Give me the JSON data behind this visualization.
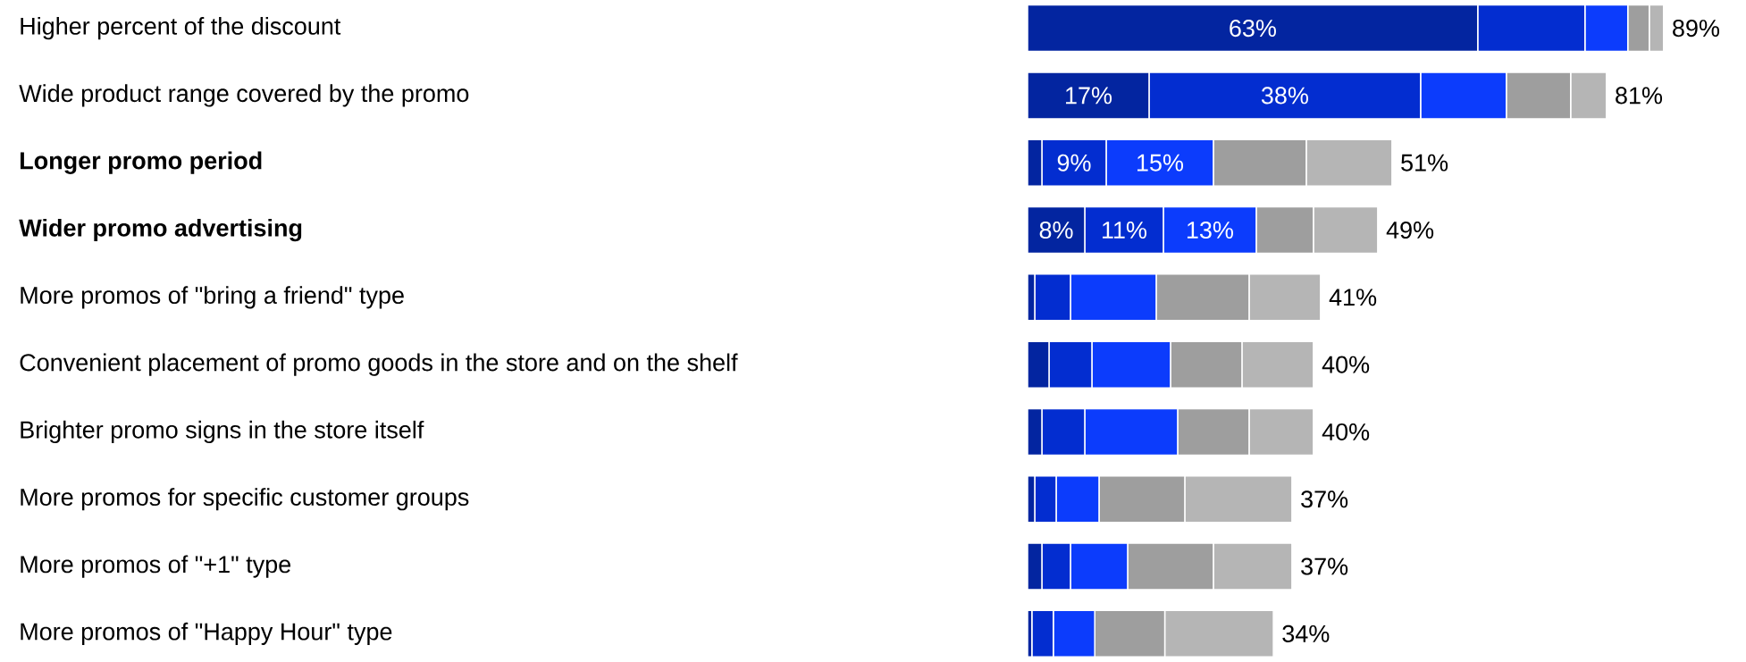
{
  "chart_data": {
    "type": "bar",
    "orientation": "horizontal",
    "stacked": true,
    "categories": [
      "Higher percent of the discount",
      "Wide product range covered by the promo",
      "**Longer promo period**",
      "**Wider promo advertising**",
      "More promos of \"bring a friend\" type",
      "Convenient placement of promo goods in the store and on the shelf",
      "Brighter promo signs in the store itself",
      "More promos for specific customer groups",
      "More promos of \"+1\" type",
      "More promos of \"Happy Hour\" type"
    ],
    "series": [
      {
        "color": "#0325a0",
        "values": [
          63,
          17,
          2,
          8,
          1,
          3,
          2,
          1,
          2,
          0.6
        ],
        "value_labels": [
          "63%",
          "17%",
          null,
          "8%",
          null,
          null,
          null,
          null,
          null,
          null
        ]
      },
      {
        "color": "#032dd0",
        "values": [
          15,
          38,
          9,
          11,
          5,
          6,
          6,
          3,
          4,
          3
        ],
        "value_labels": [
          null,
          "38%",
          "9%",
          "11%",
          null,
          null,
          null,
          null,
          null,
          null
        ]
      },
      {
        "color": "#0c3cfc",
        "values": [
          6,
          12,
          15,
          13,
          12,
          11,
          13,
          6,
          8,
          5.8
        ],
        "value_labels": [
          null,
          null,
          "15%",
          "13%",
          null,
          null,
          null,
          null,
          null,
          null
        ]
      },
      {
        "color": "#9e9e9e",
        "values": [
          3,
          9,
          13,
          8,
          13,
          10,
          10,
          12,
          12,
          9.8
        ]
      },
      {
        "color": "#b5b5b5",
        "values": [
          2,
          5,
          12,
          9,
          10,
          10,
          9,
          15,
          11,
          15.2
        ]
      }
    ],
    "totals": [
      "89%",
      "81%",
      "51%",
      "49%",
      "41%",
      "40%",
      "40%",
      "37%",
      "37%",
      "34%"
    ]
  }
}
